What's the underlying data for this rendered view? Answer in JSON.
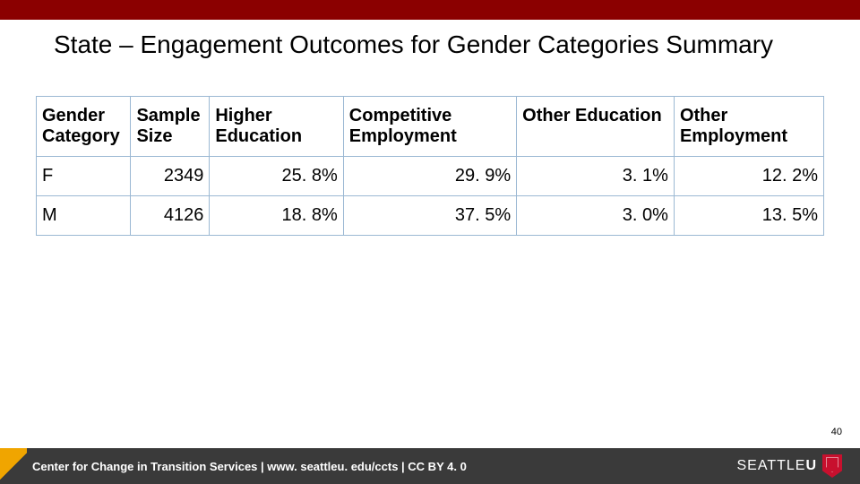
{
  "title": "State – Engagement Outcomes for Gender Categories Summary",
  "table": {
    "columns": [
      "Gender Category",
      "Sample Size",
      "Higher Education",
      "Competitive Employment",
      "Other Education",
      "Other Employment"
    ],
    "rows": [
      [
        "F",
        "2349",
        "25. 8%",
        "29. 9%",
        "3. 1%",
        "12. 2%"
      ],
      [
        "M",
        "4126",
        "18. 8%",
        "37. 5%",
        "3. 0%",
        "13. 5%"
      ]
    ],
    "border_color": "#9bb8d3",
    "col_widths_pct": [
      12,
      10,
      17,
      22,
      20,
      19
    ]
  },
  "page_number": "40",
  "footer": {
    "text": "Center for Change in Transition Services | www. seattleu. edu/ccts | CC BY 4. 0",
    "logo_thin": "SEATTLE",
    "logo_bold": "U",
    "background_color": "#3a3a3a",
    "accent_color": "#f0a500",
    "shield_color": "#c8102e"
  },
  "colors": {
    "top_bar": "#8b0000",
    "background": "#ffffff",
    "text": "#000000"
  }
}
